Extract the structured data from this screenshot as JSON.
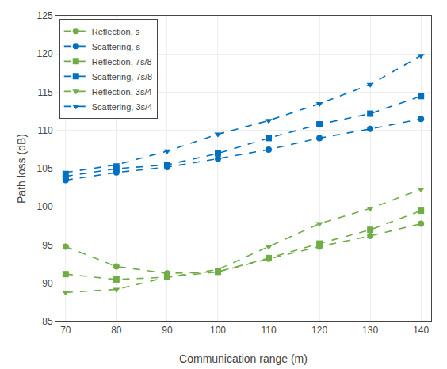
{
  "chart_data": {
    "type": "line",
    "x": [
      70,
      80,
      90,
      100,
      110,
      120,
      130,
      140
    ],
    "series": [
      {
        "name": "Reflection, s",
        "color": "#70AD47",
        "marker": "circle",
        "line_style": "dash",
        "values": [
          94.8,
          92.2,
          91.3,
          91.5,
          93.2,
          94.8,
          96.2,
          97.8
        ]
      },
      {
        "name": "Scattering, s",
        "color": "#0070C0",
        "marker": "circle",
        "line_style": "dash",
        "values": [
          103.5,
          104.5,
          105.2,
          106.3,
          107.5,
          109.0,
          110.2,
          111.5
        ]
      },
      {
        "name": "Reflection, 7s/8",
        "color": "#70AD47",
        "marker": "square",
        "line_style": "dash",
        "values": [
          91.2,
          90.5,
          90.8,
          91.5,
          93.3,
          95.2,
          97.0,
          99.5
        ]
      },
      {
        "name": "Scattering, 7s/8",
        "color": "#0070C0",
        "marker": "square",
        "line_style": "dash",
        "values": [
          104.0,
          105.0,
          105.5,
          107.0,
          109.0,
          110.8,
          112.2,
          114.5
        ]
      },
      {
        "name": "Reflection, 3s/4",
        "color": "#70AD47",
        "marker": "triangle-down",
        "line_style": "dash",
        "values": [
          88.8,
          89.2,
          90.8,
          91.8,
          94.8,
          97.8,
          99.8,
          102.3
        ]
      },
      {
        "name": "Scattering, 3s/4",
        "color": "#0070C0",
        "marker": "triangle-down",
        "line_style": "dash",
        "values": [
          104.5,
          105.5,
          107.3,
          109.5,
          111.3,
          113.5,
          116.0,
          119.8
        ]
      }
    ],
    "xlabel": "Communication range (m)",
    "ylabel": "Path loss (dB)",
    "xlim": [
      68,
      142
    ],
    "ylim": [
      85,
      125
    ],
    "xticks": [
      70,
      80,
      90,
      100,
      110,
      120,
      130,
      140
    ],
    "yticks": [
      85,
      90,
      95,
      100,
      105,
      110,
      115,
      120,
      125
    ],
    "grid": true,
    "legend": "upper left"
  }
}
